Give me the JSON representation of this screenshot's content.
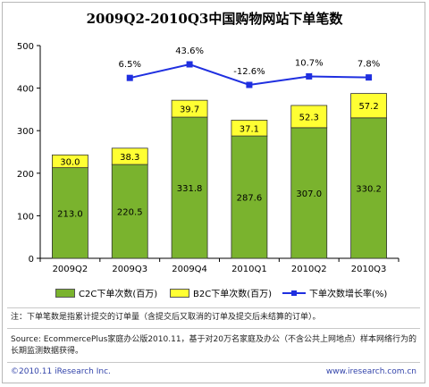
{
  "title": "2009Q2-2010Q3中国购物网站下单笔数",
  "chart_data": {
    "type": "bar",
    "categories": [
      "2009Q2",
      "2009Q3",
      "2009Q4",
      "2010Q1",
      "2010Q2",
      "2010Q3"
    ],
    "series": [
      {
        "name": "C2C下单次数(百万)",
        "values": [
          213.0,
          220.5,
          331.8,
          287.6,
          307.0,
          330.2
        ],
        "labels": [
          "213.0",
          "220.5",
          "331.8",
          "287.6",
          "307.0",
          "330.2"
        ],
        "color": "#7ab32e"
      },
      {
        "name": "B2C下单次数(百万)",
        "values": [
          30.0,
          38.3,
          39.7,
          37.1,
          52.3,
          57.2
        ],
        "labels": [
          "30.0",
          "38.3",
          "39.7",
          "37.1",
          "52.3",
          "57.2"
        ],
        "color": "#ffff33"
      },
      {
        "name": "下单次数增长率(%)",
        "values": [
          null,
          6.5,
          43.6,
          -12.6,
          10.7,
          7.8
        ],
        "labels": [
          "",
          "6.5%",
          "43.6%",
          "-12.6%",
          "10.7%",
          "7.8%"
        ],
        "color": "#1f2fe0"
      }
    ],
    "stacked": true,
    "ylim": [
      0,
      500
    ],
    "yticks": [
      "0",
      "100",
      "200",
      "300",
      "400",
      "500"
    ],
    "legend_position": "bottom",
    "grid": false
  },
  "note": "注：下单笔数是指累计提交的订单量（含提交后又取消的订单及提交后未结算的订单）。",
  "source": "Source: EcommercePlus家庭办公版2010.11，基于对20万名家庭及办公（不含公共上网地点）样本网络行为的长期监测数据获得。",
  "footer_left": "©2010.11 iResearch Inc.",
  "footer_right": "www.iresearch.com.cn"
}
